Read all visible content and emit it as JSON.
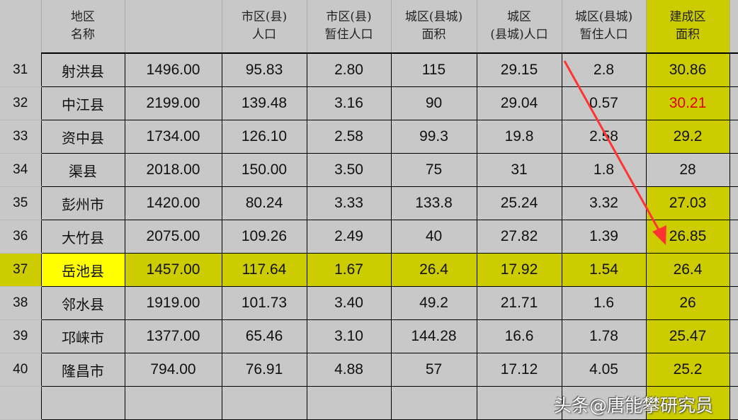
{
  "headers": [
    "",
    "地区\n名称",
    "",
    "市区(县)\n人口",
    "市区(县)\n暂住人口",
    "城区(县城)\n面积",
    "城区\n(县城)人口",
    "城区(县城)\n暂住人口",
    "建成区\n面积"
  ],
  "rows": [
    {
      "no": "31",
      "name": "射洪县",
      "cells": [
        "1496.00",
        "95.83",
        "2.80",
        "115",
        "29.15",
        "2.8",
        "30.86"
      ]
    },
    {
      "no": "32",
      "name": "中江县",
      "cells": [
        "2199.00",
        "139.48",
        "3.16",
        "90",
        "29.04",
        "0.57",
        "30.21"
      ]
    },
    {
      "no": "33",
      "name": "资中县",
      "cells": [
        "1734.00",
        "126.10",
        "2.58",
        "99.3",
        "19.8",
        "2.58",
        "29.2"
      ]
    },
    {
      "no": "34",
      "name": "渠县",
      "cells": [
        "2018.00",
        "150.00",
        "3.50",
        "75",
        "31",
        "1.8",
        "28"
      ]
    },
    {
      "no": "35",
      "name": "彭州市",
      "cells": [
        "1420.00",
        "80.24",
        "3.33",
        "133.8",
        "25.24",
        "3.32",
        "27.03"
      ]
    },
    {
      "no": "36",
      "name": "大竹县",
      "cells": [
        "2075.00",
        "109.26",
        "2.49",
        "40",
        "27.82",
        "1.39",
        "26.85"
      ]
    },
    {
      "no": "37",
      "name": "岳池县",
      "cells": [
        "1457.00",
        "117.64",
        "1.67",
        "26.4",
        "17.92",
        "1.54",
        "26.4"
      ]
    },
    {
      "no": "38",
      "name": "邻水县",
      "cells": [
        "1919.00",
        "101.73",
        "3.40",
        "49.2",
        "21.71",
        "1.6",
        "26"
      ]
    },
    {
      "no": "39",
      "name": "邛崃市",
      "cells": [
        "1377.00",
        "65.46",
        "3.10",
        "144.28",
        "16.6",
        "1.78",
        "25.47"
      ]
    },
    {
      "no": "40",
      "name": "隆昌市",
      "cells": [
        "794.00",
        "76.91",
        "4.88",
        "57",
        "17.12",
        "4.05",
        "25.2"
      ]
    }
  ],
  "highlight_row": "37",
  "red_value_row": "32",
  "watermark": "头条@唐能攀研究员",
  "colors": {
    "highlight": "#cccc00",
    "name_highlight": "#ffff00",
    "red": "#e00000",
    "arrow": "#ff3333"
  }
}
